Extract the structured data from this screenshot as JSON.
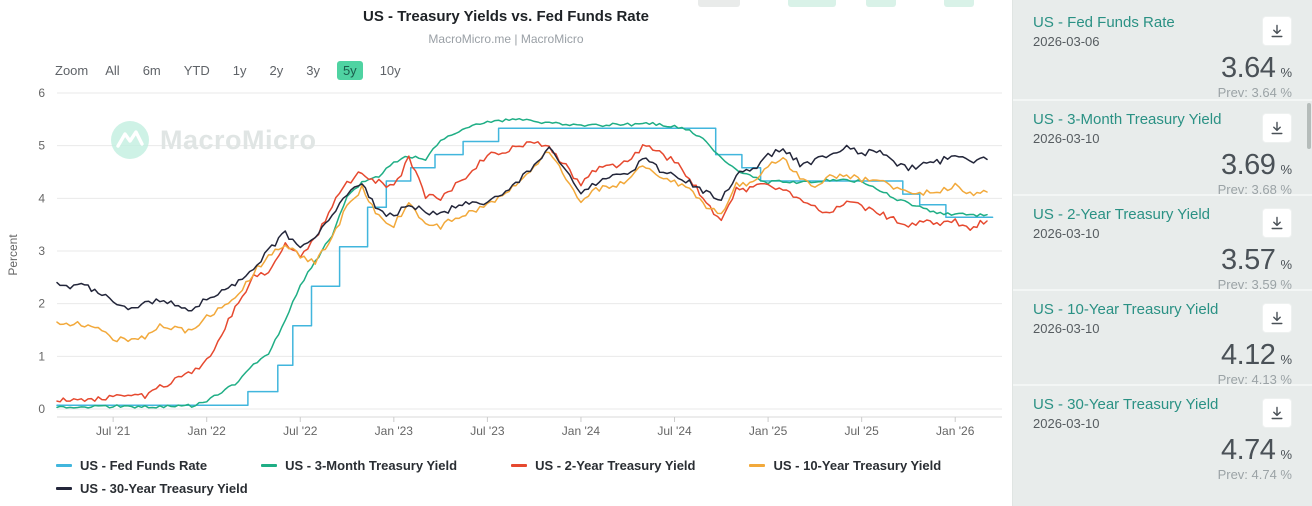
{
  "header": {
    "title": "US - Treasury Yields vs. Fed Funds Rate",
    "subtitle": "MacroMicro.me | MacroMicro"
  },
  "toolbar": {
    "zoom_label": "Zoom",
    "ranges": [
      "All",
      "6m",
      "YTD",
      "1y",
      "2y",
      "3y",
      "5y",
      "10y"
    ],
    "selected": "5y"
  },
  "watermark": {
    "text": "MacroMicro"
  },
  "colors": {
    "accent_teal": "#2a9184",
    "selected_range_bg": "#4fd3a2",
    "grid": "#e8e8e8",
    "axis_text": "#666666"
  },
  "chart_data": {
    "type": "line",
    "title": "US - Treasury Yields vs. Fed Funds Rate",
    "xlabel": "",
    "ylabel": "Percent",
    "ylim": [
      0,
      6
    ],
    "yticks": [
      0,
      1,
      2,
      3,
      4,
      5,
      6
    ],
    "xlim": [
      2021.2,
      2026.25
    ],
    "grid": "horizontal",
    "legend_position": "bottom",
    "xticks": [
      {
        "v": 2021.5,
        "label": "Jul '21"
      },
      {
        "v": 2022.0,
        "label": "Jan '22"
      },
      {
        "v": 2022.5,
        "label": "Jul '22"
      },
      {
        "v": 2023.0,
        "label": "Jan '23"
      },
      {
        "v": 2023.5,
        "label": "Jul '23"
      },
      {
        "v": 2024.0,
        "label": "Jan '24"
      },
      {
        "v": 2024.5,
        "label": "Jul '24"
      },
      {
        "v": 2025.0,
        "label": "Jan '25"
      },
      {
        "v": 2025.5,
        "label": "Jul '25"
      },
      {
        "v": 2026.0,
        "label": "Jan '26"
      }
    ],
    "series": [
      {
        "name": "US - Fed Funds Rate",
        "color": "#41b6dd",
        "type": "step",
        "noise": 0,
        "points": [
          [
            2021.2,
            0.07
          ],
          [
            2022.22,
            0.33
          ],
          [
            2022.38,
            0.83
          ],
          [
            2022.46,
            1.58
          ],
          [
            2022.56,
            2.33
          ],
          [
            2022.71,
            3.08
          ],
          [
            2022.86,
            3.83
          ],
          [
            2022.96,
            4.33
          ],
          [
            2023.09,
            4.58
          ],
          [
            2023.22,
            4.83
          ],
          [
            2023.37,
            5.08
          ],
          [
            2023.56,
            5.33
          ],
          [
            2024.72,
            4.83
          ],
          [
            2024.86,
            4.58
          ],
          [
            2024.96,
            4.33
          ],
          [
            2025.72,
            4.08
          ],
          [
            2025.81,
            3.88
          ],
          [
            2025.95,
            3.64
          ],
          [
            2026.2,
            3.64
          ]
        ]
      },
      {
        "name": "US - 3-Month Treasury Yield",
        "color": "#1fae85",
        "type": "line",
        "noise": 0.03,
        "points": [
          [
            2021.2,
            0.03
          ],
          [
            2021.25,
            0.02
          ],
          [
            2021.33,
            0.02
          ],
          [
            2021.42,
            0.04
          ],
          [
            2021.5,
            0.05
          ],
          [
            2021.58,
            0.05
          ],
          [
            2021.67,
            0.04
          ],
          [
            2021.75,
            0.05
          ],
          [
            2021.83,
            0.05
          ],
          [
            2021.92,
            0.06
          ],
          [
            2022.0,
            0.15
          ],
          [
            2022.08,
            0.33
          ],
          [
            2022.17,
            0.52
          ],
          [
            2022.25,
            0.85
          ],
          [
            2022.33,
            1.05
          ],
          [
            2022.42,
            1.7
          ],
          [
            2022.5,
            2.35
          ],
          [
            2022.58,
            2.8
          ],
          [
            2022.67,
            3.3
          ],
          [
            2022.75,
            4.05
          ],
          [
            2022.83,
            4.3
          ],
          [
            2022.92,
            4.4
          ],
          [
            2023.0,
            4.7
          ],
          [
            2023.08,
            4.8
          ],
          [
            2023.17,
            4.75
          ],
          [
            2023.25,
            5.1
          ],
          [
            2023.33,
            5.25
          ],
          [
            2023.42,
            5.4
          ],
          [
            2023.5,
            5.45
          ],
          [
            2023.58,
            5.48
          ],
          [
            2023.67,
            5.5
          ],
          [
            2023.75,
            5.45
          ],
          [
            2023.83,
            5.42
          ],
          [
            2023.92,
            5.4
          ],
          [
            2024.0,
            5.4
          ],
          [
            2024.08,
            5.38
          ],
          [
            2024.17,
            5.4
          ],
          [
            2024.25,
            5.4
          ],
          [
            2024.33,
            5.42
          ],
          [
            2024.42,
            5.4
          ],
          [
            2024.5,
            5.38
          ],
          [
            2024.58,
            5.3
          ],
          [
            2024.67,
            5.1
          ],
          [
            2024.75,
            4.75
          ],
          [
            2024.83,
            4.55
          ],
          [
            2024.92,
            4.4
          ],
          [
            2025.0,
            4.3
          ],
          [
            2025.08,
            4.32
          ],
          [
            2025.17,
            4.3
          ],
          [
            2025.25,
            4.32
          ],
          [
            2025.33,
            4.35
          ],
          [
            2025.42,
            4.35
          ],
          [
            2025.5,
            4.32
          ],
          [
            2025.58,
            4.2
          ],
          [
            2025.67,
            4.0
          ],
          [
            2025.75,
            3.9
          ],
          [
            2025.83,
            3.8
          ],
          [
            2025.92,
            3.72
          ],
          [
            2026.0,
            3.7
          ],
          [
            2026.08,
            3.68
          ],
          [
            2026.17,
            3.69
          ]
        ]
      },
      {
        "name": "US - 2-Year Treasury Yield",
        "color": "#e6492f",
        "type": "line",
        "noise": 0.06,
        "points": [
          [
            2021.2,
            0.15
          ],
          [
            2021.25,
            0.16
          ],
          [
            2021.33,
            0.15
          ],
          [
            2021.42,
            0.2
          ],
          [
            2021.5,
            0.21
          ],
          [
            2021.58,
            0.22
          ],
          [
            2021.67,
            0.25
          ],
          [
            2021.75,
            0.4
          ],
          [
            2021.83,
            0.55
          ],
          [
            2021.92,
            0.68
          ],
          [
            2022.0,
            0.9
          ],
          [
            2022.08,
            1.45
          ],
          [
            2022.17,
            2.0
          ],
          [
            2022.25,
            2.55
          ],
          [
            2022.33,
            2.6
          ],
          [
            2022.42,
            3.1
          ],
          [
            2022.5,
            2.9
          ],
          [
            2022.58,
            3.25
          ],
          [
            2022.67,
            3.85
          ],
          [
            2022.75,
            4.3
          ],
          [
            2022.83,
            4.5
          ],
          [
            2022.92,
            4.3
          ],
          [
            2023.0,
            4.2
          ],
          [
            2023.08,
            4.75
          ],
          [
            2023.17,
            4.05
          ],
          [
            2023.25,
            4.0
          ],
          [
            2023.33,
            4.25
          ],
          [
            2023.42,
            4.5
          ],
          [
            2023.5,
            4.85
          ],
          [
            2023.58,
            4.9
          ],
          [
            2023.67,
            5.0
          ],
          [
            2023.75,
            5.1
          ],
          [
            2023.83,
            4.95
          ],
          [
            2023.92,
            4.6
          ],
          [
            2024.0,
            4.25
          ],
          [
            2024.08,
            4.55
          ],
          [
            2024.17,
            4.6
          ],
          [
            2024.25,
            4.7
          ],
          [
            2024.33,
            5.0
          ],
          [
            2024.42,
            4.85
          ],
          [
            2024.5,
            4.7
          ],
          [
            2024.58,
            4.4
          ],
          [
            2024.67,
            3.9
          ],
          [
            2024.75,
            3.6
          ],
          [
            2024.83,
            4.15
          ],
          [
            2024.92,
            4.2
          ],
          [
            2025.0,
            4.25
          ],
          [
            2025.08,
            4.2
          ],
          [
            2025.17,
            3.95
          ],
          [
            2025.25,
            3.85
          ],
          [
            2025.33,
            3.7
          ],
          [
            2025.42,
            3.95
          ],
          [
            2025.5,
            3.85
          ],
          [
            2025.58,
            3.75
          ],
          [
            2025.67,
            3.6
          ],
          [
            2025.75,
            3.5
          ],
          [
            2025.83,
            3.55
          ],
          [
            2025.92,
            3.5
          ],
          [
            2026.0,
            3.55
          ],
          [
            2026.08,
            3.45
          ],
          [
            2026.17,
            3.57
          ]
        ]
      },
      {
        "name": "US - 10-Year Treasury Yield",
        "color": "#f2a93b",
        "type": "line",
        "noise": 0.055,
        "points": [
          [
            2021.2,
            1.65
          ],
          [
            2021.25,
            1.58
          ],
          [
            2021.33,
            1.62
          ],
          [
            2021.42,
            1.5
          ],
          [
            2021.5,
            1.35
          ],
          [
            2021.58,
            1.28
          ],
          [
            2021.67,
            1.38
          ],
          [
            2021.75,
            1.58
          ],
          [
            2021.83,
            1.55
          ],
          [
            2021.92,
            1.45
          ],
          [
            2022.0,
            1.75
          ],
          [
            2022.08,
            1.95
          ],
          [
            2022.17,
            2.15
          ],
          [
            2022.25,
            2.6
          ],
          [
            2022.33,
            2.9
          ],
          [
            2022.42,
            3.1
          ],
          [
            2022.5,
            2.9
          ],
          [
            2022.58,
            2.8
          ],
          [
            2022.67,
            3.25
          ],
          [
            2022.75,
            3.85
          ],
          [
            2022.83,
            4.2
          ],
          [
            2022.92,
            3.65
          ],
          [
            2023.0,
            3.5
          ],
          [
            2023.08,
            3.9
          ],
          [
            2023.17,
            3.55
          ],
          [
            2023.25,
            3.45
          ],
          [
            2023.33,
            3.65
          ],
          [
            2023.42,
            3.75
          ],
          [
            2023.5,
            3.85
          ],
          [
            2023.58,
            4.05
          ],
          [
            2023.67,
            4.3
          ],
          [
            2023.75,
            4.6
          ],
          [
            2023.83,
            4.9
          ],
          [
            2023.92,
            4.4
          ],
          [
            2024.0,
            3.95
          ],
          [
            2024.08,
            4.15
          ],
          [
            2024.17,
            4.25
          ],
          [
            2024.25,
            4.3
          ],
          [
            2024.33,
            4.65
          ],
          [
            2024.42,
            4.45
          ],
          [
            2024.5,
            4.3
          ],
          [
            2024.58,
            4.15
          ],
          [
            2024.67,
            3.85
          ],
          [
            2024.75,
            3.7
          ],
          [
            2024.83,
            4.25
          ],
          [
            2024.92,
            4.3
          ],
          [
            2025.0,
            4.6
          ],
          [
            2025.08,
            4.75
          ],
          [
            2025.17,
            4.4
          ],
          [
            2025.25,
            4.25
          ],
          [
            2025.33,
            4.4
          ],
          [
            2025.42,
            4.45
          ],
          [
            2025.5,
            4.35
          ],
          [
            2025.58,
            4.4
          ],
          [
            2025.67,
            4.2
          ],
          [
            2025.75,
            4.1
          ],
          [
            2025.83,
            4.1
          ],
          [
            2025.92,
            4.15
          ],
          [
            2026.0,
            4.25
          ],
          [
            2026.08,
            4.1
          ],
          [
            2026.17,
            4.12
          ]
        ]
      },
      {
        "name": "US - 30-Year Treasury Yield",
        "color": "#23263a",
        "type": "line",
        "noise": 0.055,
        "points": [
          [
            2021.2,
            2.4
          ],
          [
            2021.25,
            2.32
          ],
          [
            2021.33,
            2.38
          ],
          [
            2021.42,
            2.2
          ],
          [
            2021.5,
            2.05
          ],
          [
            2021.58,
            1.92
          ],
          [
            2021.67,
            2.0
          ],
          [
            2021.75,
            2.08
          ],
          [
            2021.83,
            2.0
          ],
          [
            2021.92,
            1.88
          ],
          [
            2022.0,
            2.1
          ],
          [
            2022.08,
            2.25
          ],
          [
            2022.17,
            2.4
          ],
          [
            2022.25,
            2.7
          ],
          [
            2022.33,
            3.0
          ],
          [
            2022.42,
            3.35
          ],
          [
            2022.5,
            3.05
          ],
          [
            2022.58,
            3.25
          ],
          [
            2022.67,
            3.65
          ],
          [
            2022.75,
            4.1
          ],
          [
            2022.83,
            4.25
          ],
          [
            2022.92,
            3.75
          ],
          [
            2023.0,
            3.65
          ],
          [
            2023.08,
            3.9
          ],
          [
            2023.17,
            3.75
          ],
          [
            2023.25,
            3.7
          ],
          [
            2023.33,
            3.85
          ],
          [
            2023.42,
            3.9
          ],
          [
            2023.5,
            3.9
          ],
          [
            2023.58,
            4.1
          ],
          [
            2023.67,
            4.35
          ],
          [
            2023.75,
            4.6
          ],
          [
            2023.83,
            4.95
          ],
          [
            2023.92,
            4.55
          ],
          [
            2024.0,
            4.05
          ],
          [
            2024.08,
            4.3
          ],
          [
            2024.17,
            4.4
          ],
          [
            2024.25,
            4.45
          ],
          [
            2024.33,
            4.75
          ],
          [
            2024.42,
            4.55
          ],
          [
            2024.5,
            4.45
          ],
          [
            2024.58,
            4.3
          ],
          [
            2024.67,
            4.1
          ],
          [
            2024.75,
            3.95
          ],
          [
            2024.83,
            4.45
          ],
          [
            2024.92,
            4.55
          ],
          [
            2025.0,
            4.8
          ],
          [
            2025.08,
            4.95
          ],
          [
            2025.17,
            4.65
          ],
          [
            2025.25,
            4.7
          ],
          [
            2025.33,
            4.85
          ],
          [
            2025.42,
            4.95
          ],
          [
            2025.5,
            4.85
          ],
          [
            2025.58,
            4.9
          ],
          [
            2025.67,
            4.7
          ],
          [
            2025.75,
            4.55
          ],
          [
            2025.83,
            4.65
          ],
          [
            2025.92,
            4.7
          ],
          [
            2026.0,
            4.85
          ],
          [
            2026.08,
            4.7
          ],
          [
            2026.17,
            4.74
          ]
        ]
      }
    ]
  },
  "sidebar": {
    "prev_label": "Prev:",
    "cards": [
      {
        "title": "US - Fed Funds Rate",
        "date": "2026-03-06",
        "value": "3.64",
        "unit": "%",
        "prev_value": "3.64 %"
      },
      {
        "title": "US - 3-Month Treasury Yield",
        "date": "2026-03-10",
        "value": "3.69",
        "unit": "%",
        "prev_value": "3.68 %"
      },
      {
        "title": "US - 2-Year Treasury Yield",
        "date": "2026-03-10",
        "value": "3.57",
        "unit": "%",
        "prev_value": "3.59 %"
      },
      {
        "title": "US - 10-Year Treasury Yield",
        "date": "2026-03-10",
        "value": "4.12",
        "unit": "%",
        "prev_value": "4.13 %"
      },
      {
        "title": "US - 30-Year Treasury Yield",
        "date": "2026-03-10",
        "value": "4.74",
        "unit": "%",
        "prev_value": "4.74 %"
      }
    ]
  }
}
